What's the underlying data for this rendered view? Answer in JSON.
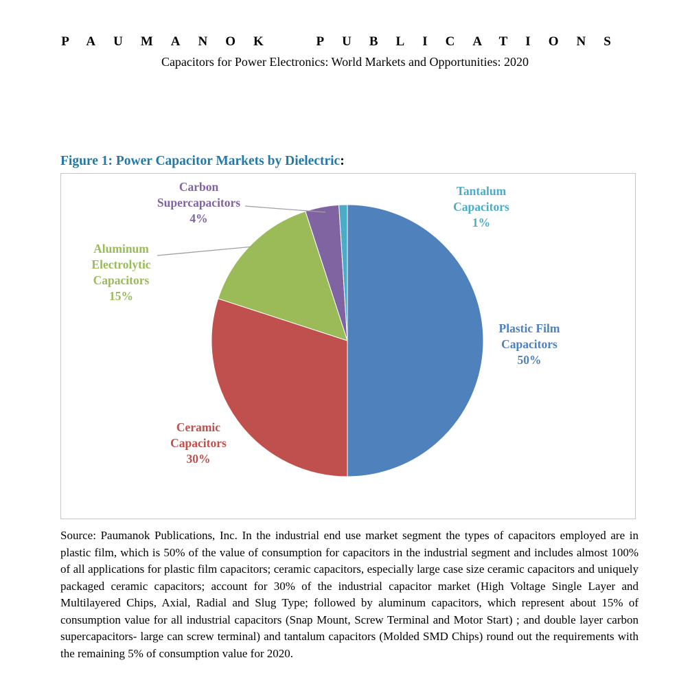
{
  "page": {
    "publisher": "PAUMANOK PUBLICATIONS",
    "doc_title": "Capacitors for Power Electronics: World Markets and Opportunities: 2020"
  },
  "figure": {
    "title": "Figure 1: Power Capacitor Markets by Dielectric",
    "colon": ":"
  },
  "colors": {
    "figure_title": "#2279A8"
  },
  "chart_data": {
    "type": "pie",
    "title": "Power Capacitor Markets by Dielectric",
    "unit": "percent of consumption value, 2020",
    "start_angle_deg": 0,
    "direction": "clockwise",
    "legend_position": "none",
    "labels": "outside with category name and percentage",
    "series": [
      {
        "name": "Plastic Film Capacitors",
        "value": 50,
        "color": "#4F81BD",
        "label_lines": [
          "Plastic Film",
          "Capacitors",
          "50%"
        ]
      },
      {
        "name": "Ceramic Capacitors",
        "value": 30,
        "color": "#C0504D",
        "label_lines": [
          "Ceramic",
          "Capacitors",
          "30%"
        ]
      },
      {
        "name": "Aluminum Electrolytic Capacitors",
        "value": 15,
        "color": "#9BBB59",
        "label_lines": [
          "Aluminum",
          "Electrolytic",
          "Capacitors",
          "15%"
        ]
      },
      {
        "name": "Carbon Supercapacitors",
        "value": 4,
        "color": "#8064A2",
        "label_lines": [
          "Carbon",
          "Supercapacitors",
          "4%"
        ]
      },
      {
        "name": "Tantalum Capacitors",
        "value": 1,
        "color": "#4BACC6",
        "label_lines": [
          "Tantalum",
          "Capacitors",
          "1%"
        ]
      }
    ]
  },
  "caption": {
    "source_label": "Source: Paumanok Publications, Inc.",
    "text": "In the industrial end use market segment the types of capacitors employed are in plastic film, which is 50% of the value of consumption for capacitors in the industrial segment and includes almost 100% of all applications for plastic film capacitors; ceramic capacitors, especially large case size ceramic capacitors and uniquely packaged ceramic capacitors; account for 30% of the industrial capacitor market (High Voltage Single Layer and Multilayered Chips, Axial, Radial and Slug Type; followed by aluminum capacitors, which represent about 15% of consumption value for all industrial capacitors (Snap Mount, Screw Terminal and Motor Start) ; and double layer carbon supercapacitors- large can screw terminal) and tantalum capacitors (Molded SMD Chips) round out the requirements with the remaining 5% of consumption value for 2020."
  }
}
